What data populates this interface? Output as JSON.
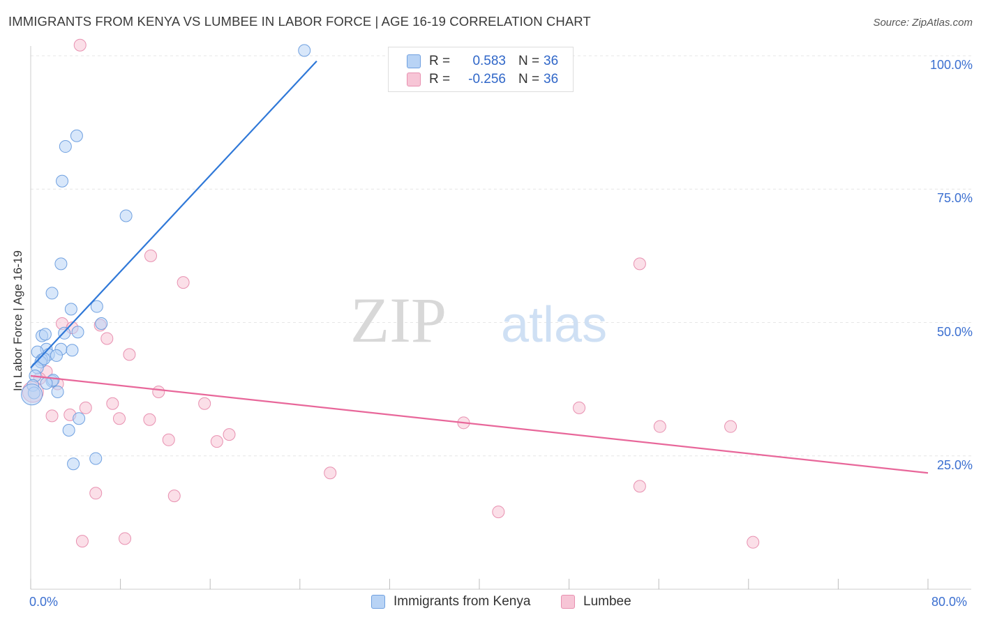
{
  "title": "IMMIGRANTS FROM KENYA VS LUMBEE IN LABOR FORCE | AGE 16-19 CORRELATION CHART",
  "source": "Source: ZipAtlas.com",
  "watermark": {
    "zip": "ZIP",
    "atlas": "atlas"
  },
  "colors": {
    "blue": "#2f78d8",
    "blue_fill": "#b8d3f5",
    "pink": "#e8679a",
    "pink_fill": "#f7c5d6",
    "value_text": "#2f66c8"
  },
  "legend_top": [
    {
      "r_label": "R =",
      "r_value": "0.583",
      "n_label": "N =",
      "n_value": "36"
    },
    {
      "r_label": "R =",
      "r_value": "-0.256",
      "n_label": "N =",
      "n_value": "36"
    }
  ],
  "chart_data": {
    "type": "scatter",
    "title": "IMMIGRANTS FROM KENYA VS LUMBEE IN LABOR FORCE | AGE 16-19 CORRELATION CHART",
    "xlabel": "",
    "ylabel": "In Labor Force | Age 16-19",
    "xlim": [
      0,
      80
    ],
    "ylim": [
      0,
      105
    ],
    "x_tick_labels": [
      "0.0%",
      "80.0%"
    ],
    "y_tick_labels": [
      "100.0%",
      "75.0%",
      "50.0%",
      "25.0%"
    ],
    "y_tick_values": [
      100,
      75,
      50,
      25
    ],
    "grid": true,
    "series": [
      {
        "name": "Immigrants from Kenya",
        "color": "#2f78d8",
        "points": [
          [
            24.4,
            101.0
          ],
          [
            4.1,
            85.0
          ],
          [
            3.1,
            83.0
          ],
          [
            2.8,
            76.5
          ],
          [
            8.5,
            70.0
          ],
          [
            2.7,
            61.0
          ],
          [
            1.9,
            55.5
          ],
          [
            3.6,
            52.5
          ],
          [
            5.9,
            53.0
          ],
          [
            6.3,
            49.8
          ],
          [
            3.0,
            48.0
          ],
          [
            4.2,
            48.2
          ],
          [
            1.0,
            47.5
          ],
          [
            1.3,
            47.8
          ],
          [
            2.7,
            45.0
          ],
          [
            1.4,
            45.0
          ],
          [
            3.7,
            44.8
          ],
          [
            0.6,
            44.5
          ],
          [
            1.6,
            44.0
          ],
          [
            2.3,
            43.8
          ],
          [
            1.0,
            43.0
          ],
          [
            0.9,
            42.6
          ],
          [
            0.6,
            41.5
          ],
          [
            0.4,
            40.0
          ],
          [
            1.9,
            39.0
          ],
          [
            2.0,
            39.2
          ],
          [
            1.4,
            38.6
          ],
          [
            0.2,
            38.2
          ],
          [
            0.3,
            36.8
          ],
          [
            2.4,
            37.0
          ],
          [
            4.3,
            32.0
          ],
          [
            3.4,
            29.8
          ],
          [
            5.8,
            24.5
          ],
          [
            3.8,
            23.5
          ],
          [
            1.2,
            43.2
          ],
          [
            0.1,
            36.5
          ]
        ],
        "trend": {
          "x": [
            0,
            25.5
          ],
          "y": [
            41.5,
            99.0
          ]
        }
      },
      {
        "name": "Lumbee",
        "color": "#e8679a",
        "points": [
          [
            4.4,
            102.0
          ],
          [
            10.7,
            62.5
          ],
          [
            13.6,
            57.5
          ],
          [
            54.3,
            61.0
          ],
          [
            2.8,
            49.8
          ],
          [
            6.2,
            49.5
          ],
          [
            3.7,
            49.0
          ],
          [
            6.8,
            47.0
          ],
          [
            8.8,
            44.0
          ],
          [
            1.4,
            40.8
          ],
          [
            0.8,
            39.5
          ],
          [
            2.4,
            38.5
          ],
          [
            11.4,
            37.0
          ],
          [
            7.3,
            34.8
          ],
          [
            15.5,
            34.8
          ],
          [
            4.9,
            34.0
          ],
          [
            48.9,
            34.0
          ],
          [
            1.9,
            32.5
          ],
          [
            3.5,
            32.7
          ],
          [
            7.9,
            32.0
          ],
          [
            10.6,
            31.8
          ],
          [
            38.6,
            31.2
          ],
          [
            56.1,
            30.5
          ],
          [
            62.4,
            30.5
          ],
          [
            17.7,
            29.0
          ],
          [
            12.3,
            28.0
          ],
          [
            16.6,
            27.7
          ],
          [
            26.7,
            21.8
          ],
          [
            5.8,
            18.0
          ],
          [
            54.3,
            19.3
          ],
          [
            12.8,
            17.5
          ],
          [
            41.7,
            14.5
          ],
          [
            4.6,
            9.0
          ],
          [
            8.4,
            9.5
          ],
          [
            64.4,
            8.8
          ],
          [
            0.2,
            37.0
          ]
        ],
        "trend": {
          "x": [
            0,
            80
          ],
          "y": [
            40.0,
            21.8
          ]
        }
      }
    ]
  },
  "legend_bottom": [
    {
      "label": "Immigrants from Kenya"
    },
    {
      "label": "Lumbee"
    }
  ]
}
